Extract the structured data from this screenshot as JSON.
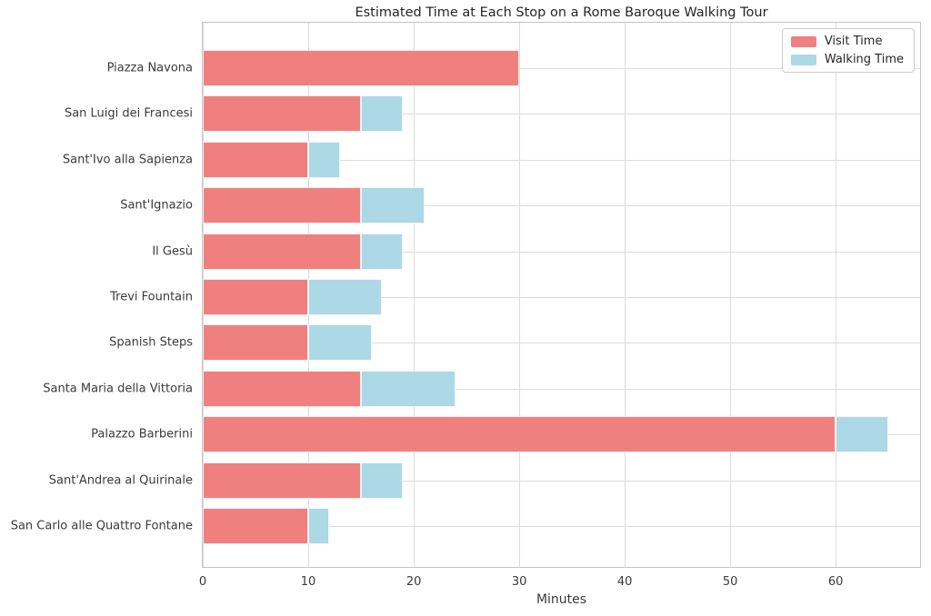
{
  "chart_data": {
    "type": "bar",
    "orientation": "horizontal",
    "stacked": true,
    "title": "Estimated Time at Each Stop on a Rome Baroque Walking Tour",
    "xlabel": "Minutes",
    "ylabel": "",
    "categories": [
      "Piazza Navona",
      "San Luigi dei Francesi",
      "Sant'Ivo alla Sapienza",
      "Sant'Ignazio",
      "Il Gesù",
      "Trevi Fountain",
      "Spanish Steps",
      "Santa Maria della Vittoria",
      "Palazzo Barberini",
      "Sant'Andrea al Quirinale",
      "San Carlo alle Quattro Fontane"
    ],
    "series": [
      {
        "name": "Visit Time",
        "color": "#f08080",
        "values": [
          30,
          15,
          10,
          15,
          15,
          10,
          10,
          15,
          60,
          15,
          10
        ]
      },
      {
        "name": "Walking Time",
        "color": "#add8e6",
        "values": [
          0,
          4,
          3,
          6,
          4,
          7,
          6,
          9,
          5,
          4,
          2
        ]
      }
    ],
    "xlim": [
      0,
      68
    ],
    "xticks": [
      0,
      10,
      20,
      30,
      40,
      50,
      60
    ],
    "grid": true,
    "legend_position": "upper right"
  },
  "colors": {
    "visit": "#f08080",
    "walking": "#add8e6",
    "grid": "#dcdcdc",
    "spine": "#c3c3c3",
    "title_text": "#262626",
    "label_text": "#3a3a3a",
    "legend_border": "#cccccc",
    "background": "#ffffff"
  }
}
